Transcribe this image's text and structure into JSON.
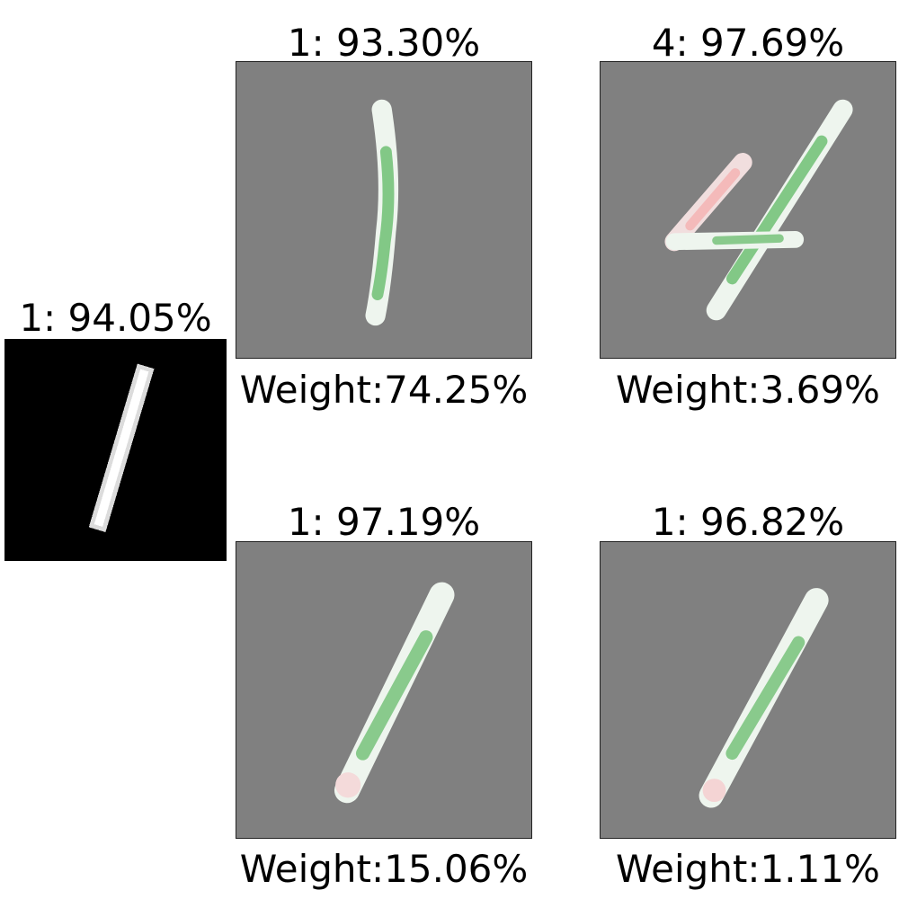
{
  "query": {
    "title": "1: 94.05%",
    "label": "1",
    "confidence_pct": 94.05
  },
  "prototypes": [
    {
      "title": "1: 93.30%",
      "label": "1",
      "confidence_pct": 93.3,
      "weight_text": "Weight:74.25%",
      "weight_pct": 74.25
    },
    {
      "title": "4: 97.69%",
      "label": "4",
      "confidence_pct": 97.69,
      "weight_text": "Weight:3.69%",
      "weight_pct": 3.69
    },
    {
      "title": "1: 97.19%",
      "label": "1",
      "confidence_pct": 97.19,
      "weight_text": "Weight:15.06%",
      "weight_pct": 15.06
    },
    {
      "title": "1: 96.82%",
      "label": "1",
      "confidence_pct": 96.82,
      "weight_text": "Weight:1.11%",
      "weight_pct": 1.11
    }
  ],
  "colors": {
    "query_background": "#000000",
    "prototype_background": "#808080",
    "positive_relevance": "#6fbf73",
    "negative_relevance": "#f4b6b6"
  }
}
